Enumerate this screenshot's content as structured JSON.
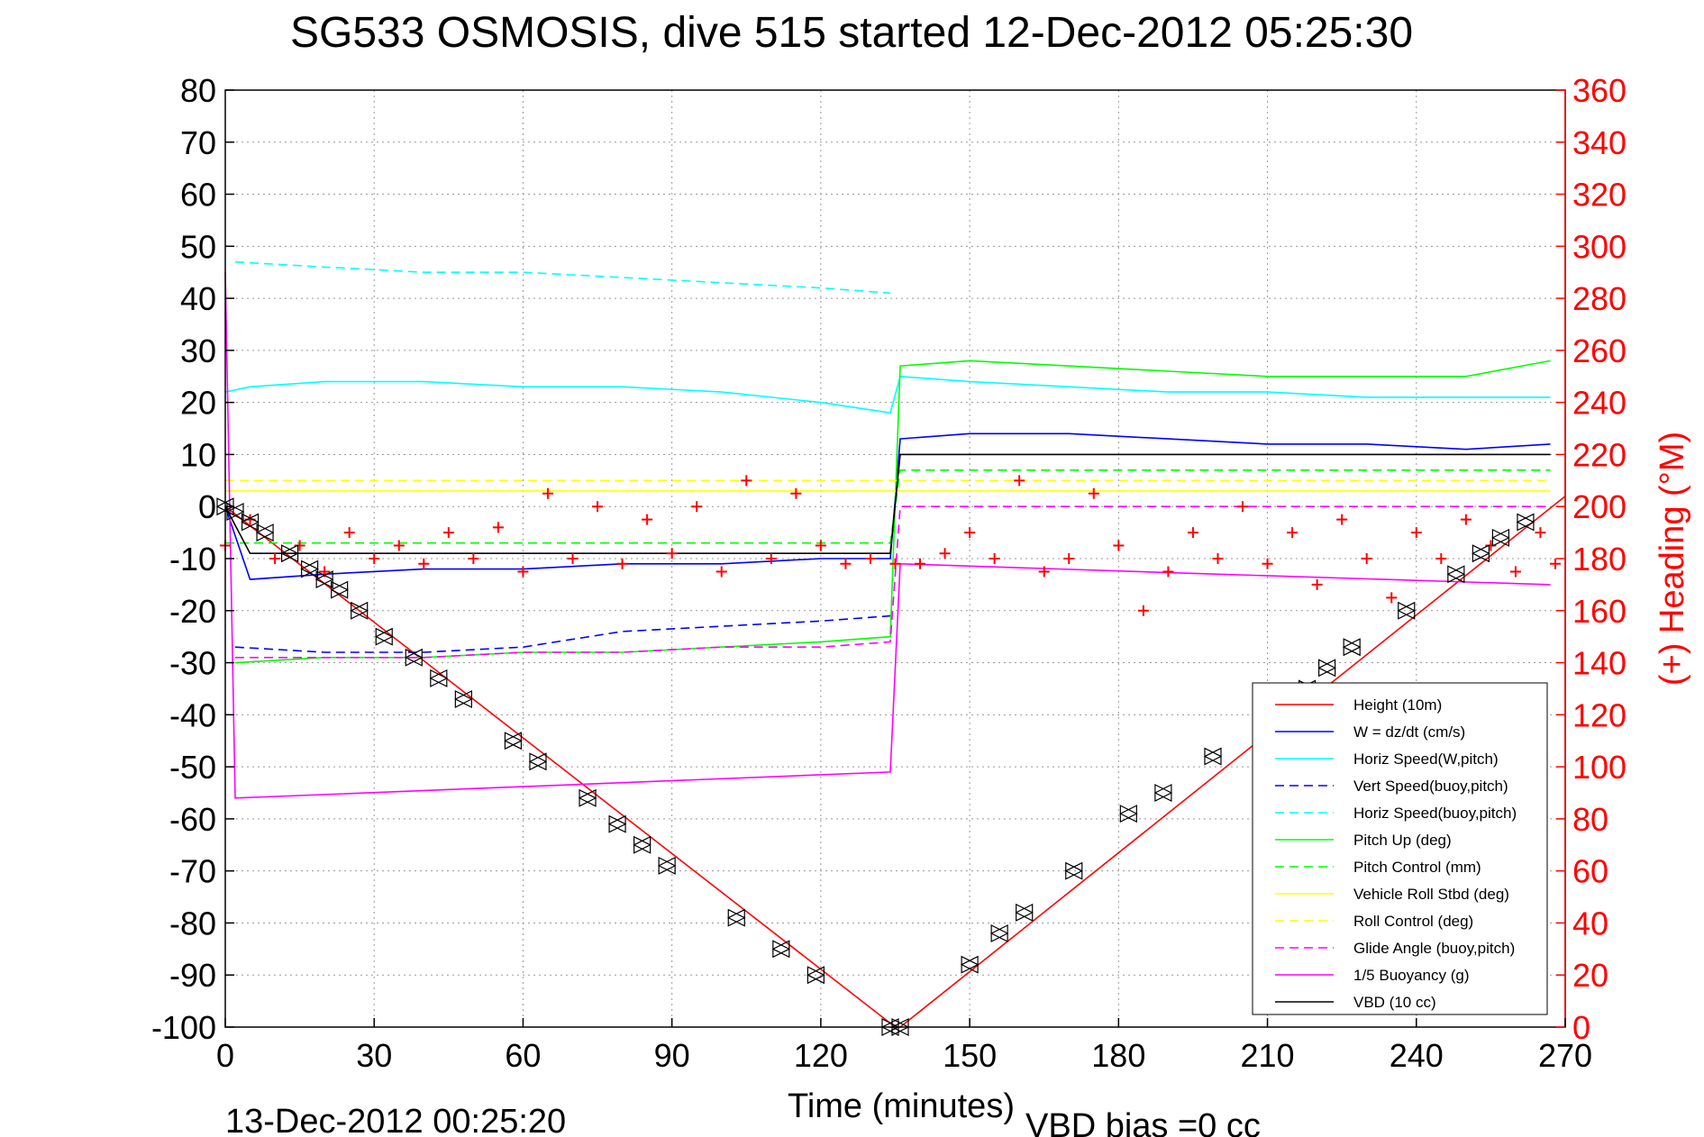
{
  "chart_data": {
    "type": "line",
    "title": "SG533 OSMOSIS, dive 515 started 12-Dec-2012 05:25:30",
    "xlabel": "Time (minutes)",
    "ylabel_right": "(+) Heading (°M)",
    "footer_left": "13-Dec-2012 00:25:20",
    "footer_right": "VBD bias =0 cc",
    "xlim": [
      0,
      270
    ],
    "ylim_left": [
      -100,
      80
    ],
    "ylim_right": [
      0,
      360
    ],
    "x_ticks": [
      "0",
      "30",
      "60",
      "90",
      "120",
      "150",
      "180",
      "210",
      "240",
      "270"
    ],
    "y_left_ticks": [
      "80",
      "70",
      "60",
      "50",
      "40",
      "30",
      "20",
      "10",
      "0",
      "-10",
      "-20",
      "-30",
      "-40",
      "-50",
      "-60",
      "-70",
      "-80",
      "-90",
      "-100"
    ],
    "y_right_ticks": [
      "360",
      "340",
      "320",
      "300",
      "280",
      "260",
      "240",
      "220",
      "200",
      "180",
      "160",
      "140",
      "120",
      "100",
      "80",
      "60",
      "40",
      "20",
      "0"
    ],
    "grid": true,
    "legend_position": "bottom-right",
    "colors": {
      "red": "#ff0000",
      "blue": "#0000ff",
      "cyan": "#00ffff",
      "green": "#00ff00",
      "yellow": "#ffff00",
      "magenta": "#ff00ff",
      "black": "#000000"
    },
    "series": [
      {
        "name": "Height (10m)",
        "color": "#ff0000",
        "style": "solid",
        "x": [
          0,
          135,
          136,
          270
        ],
        "y": [
          0,
          -100,
          -100,
          2
        ]
      },
      {
        "name": "W = dz/dt (cm/s)",
        "color": "#0000ff",
        "style": "solid",
        "x": [
          0,
          5,
          20,
          40,
          60,
          80,
          100,
          120,
          134,
          136,
          150,
          170,
          190,
          210,
          230,
          250,
          267
        ],
        "y": [
          0,
          -14,
          -13,
          -12,
          -12,
          -11,
          -11,
          -10,
          -10,
          13,
          14,
          14,
          13,
          12,
          12,
          11,
          12
        ]
      },
      {
        "name": "Horiz Speed(W,pitch)",
        "color": "#00ffff",
        "style": "solid",
        "x": [
          0,
          5,
          20,
          40,
          60,
          80,
          100,
          120,
          134,
          136,
          150,
          170,
          190,
          210,
          230,
          250,
          267
        ],
        "y": [
          22,
          23,
          24,
          24,
          23,
          23,
          22,
          20,
          18,
          25,
          24,
          23,
          22,
          22,
          21,
          21,
          21
        ]
      },
      {
        "name": "Vert Speed(buoy,pitch)",
        "color": "#0000ff",
        "style": "dashed",
        "x": [
          2,
          20,
          40,
          60,
          80,
          100,
          120,
          134
        ],
        "y": [
          -27,
          -28,
          -28,
          -27,
          -24,
          -23,
          -22,
          -21
        ]
      },
      {
        "name": "Horiz Speed(buoy,pitch)",
        "color": "#00ffff",
        "style": "dashed",
        "x": [
          2,
          20,
          40,
          60,
          80,
          100,
          120,
          134
        ],
        "y": [
          47,
          46,
          45,
          45,
          44,
          43,
          42,
          41
        ]
      },
      {
        "name": "Pitch Up (deg)",
        "color": "#00ff00",
        "style": "solid",
        "x": [
          2,
          20,
          40,
          60,
          80,
          100,
          120,
          134,
          136,
          150,
          170,
          190,
          210,
          230,
          250,
          267
        ],
        "y": [
          -30,
          -29,
          -29,
          -28,
          -28,
          -27,
          -26,
          -25,
          27,
          28,
          27,
          26,
          25,
          25,
          25,
          28
        ]
      },
      {
        "name": "Pitch Control (mm)",
        "color": "#00ff00",
        "style": "dashed",
        "x": [
          0,
          134,
          136,
          267
        ],
        "y": [
          -7,
          -7,
          7,
          7
        ]
      },
      {
        "name": "Vehicle Roll Stbd (deg)",
        "color": "#ffff00",
        "style": "solid",
        "x": [
          0,
          134,
          136,
          267
        ],
        "y": [
          3,
          3,
          3,
          3
        ]
      },
      {
        "name": "Roll Control (deg)",
        "color": "#ffff00",
        "style": "dashed",
        "x": [
          0,
          134,
          136,
          267
        ],
        "y": [
          5,
          5,
          5,
          5
        ]
      },
      {
        "name": "Glide Angle (buoy,pitch)",
        "color": "#ff00ff",
        "style": "dashed",
        "x": [
          2,
          20,
          40,
          60,
          80,
          100,
          120,
          134,
          136,
          267
        ],
        "y": [
          -29,
          -29,
          -29,
          -28,
          -28,
          -27,
          -27,
          -26,
          0,
          0
        ]
      },
      {
        "name": "1/5 Buoyancy (g)",
        "color": "#ff00ff",
        "style": "solid",
        "x": [
          0,
          2,
          134,
          136,
          200,
          267
        ],
        "y": [
          45,
          -56,
          -51,
          -11,
          -13,
          -15
        ]
      },
      {
        "name": "VBD (10 cc)",
        "color": "#000000",
        "style": "solid",
        "x": [
          0,
          5,
          134,
          136,
          150,
          267
        ],
        "y": [
          0,
          -9,
          -9,
          10,
          10,
          10
        ]
      },
      {
        "name": "Heading",
        "color": "#ff0000",
        "style": "plus-markers",
        "axis": "right",
        "x": [
          0,
          5,
          10,
          15,
          20,
          25,
          30,
          35,
          40,
          45,
          50,
          55,
          60,
          65,
          70,
          75,
          80,
          85,
          90,
          95,
          100,
          105,
          110,
          115,
          120,
          125,
          130,
          135,
          140,
          145,
          150,
          155,
          160,
          165,
          170,
          175,
          180,
          185,
          190,
          195,
          200,
          205,
          210,
          215,
          220,
          225,
          230,
          235,
          240,
          245,
          250,
          255,
          260,
          265,
          268
        ],
        "y": [
          185,
          195,
          180,
          185,
          175,
          190,
          180,
          185,
          178,
          190,
          180,
          192,
          175,
          205,
          180,
          200,
          178,
          195,
          182,
          200,
          175,
          210,
          180,
          205,
          185,
          178,
          180,
          178,
          178,
          182,
          190,
          180,
          210,
          175,
          180,
          205,
          185,
          160,
          175,
          190,
          180,
          200,
          178,
          190,
          170,
          195,
          180,
          165,
          190,
          180,
          195,
          185,
          175,
          190,
          178
        ]
      },
      {
        "name": "Height markers",
        "color": "#000000",
        "style": "triangle-markers",
        "x": [
          0,
          2,
          5,
          8,
          13,
          17,
          20,
          23,
          27,
          32,
          38,
          43,
          48,
          58,
          63,
          73,
          79,
          84,
          89,
          103,
          112,
          119,
          134,
          136,
          150,
          156,
          161,
          171,
          182,
          189,
          199,
          218,
          222,
          227,
          238,
          248,
          253,
          257,
          262
        ],
        "y": [
          0,
          -1,
          -3,
          -5,
          -9,
          -12,
          -14,
          -16,
          -20,
          -25,
          -29,
          -33,
          -37,
          -45,
          -49,
          -56,
          -61,
          -65,
          -69,
          -79,
          -85,
          -90,
          -100,
          -100,
          -88,
          -82,
          -78,
          -70,
          -59,
          -55,
          -48,
          -35,
          -31,
          -27,
          -20,
          -13,
          -9,
          -6,
          -3
        ]
      }
    ]
  }
}
